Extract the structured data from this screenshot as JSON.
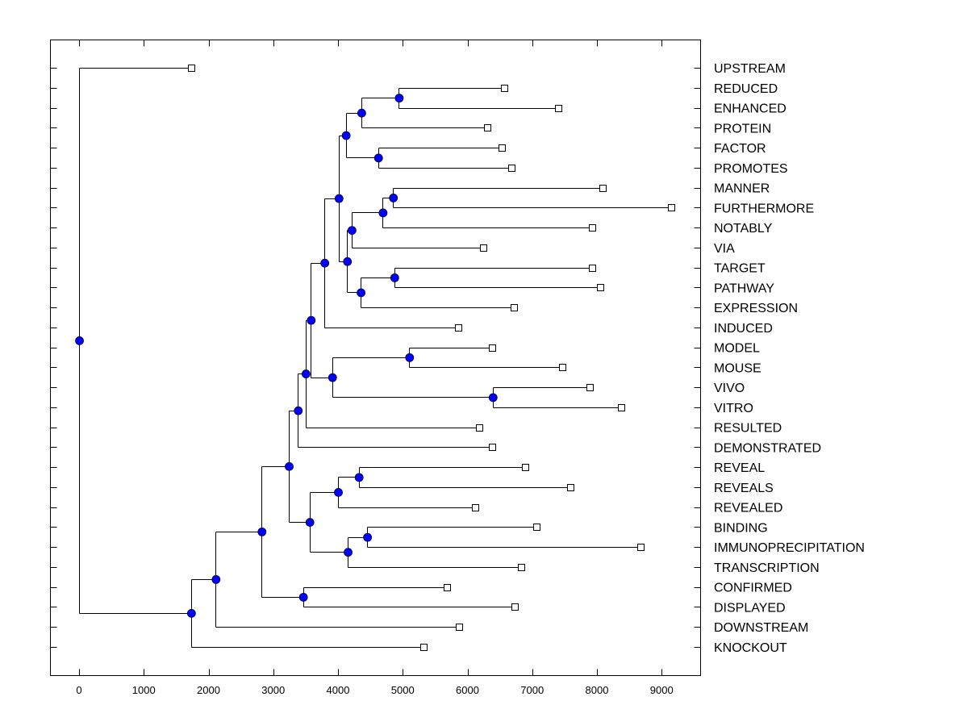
{
  "chart_data": {
    "type": "dendrogram",
    "title": "",
    "xlabel": "",
    "ylabel": "",
    "xlim": [
      -450,
      9600
    ],
    "xticks": [
      0,
      1000,
      2000,
      3000,
      4000,
      5000,
      6000,
      7000,
      8000,
      9000
    ],
    "xtick_labels": [
      "0",
      "1000",
      "2000",
      "3000",
      "4000",
      "5000",
      "6000",
      "7000",
      "8000",
      "9000"
    ],
    "grid": false,
    "leaves_order": [
      "UPSTREAM",
      "REDUCED",
      "ENHANCED",
      "PROTEIN",
      "FACTOR",
      "PROMOTES",
      "MANNER",
      "FURTHERMORE",
      "NOTABLY",
      "VIA",
      "TARGET",
      "PATHWAY",
      "EXPRESSION",
      "INDUCED",
      "MODEL",
      "MOUSE",
      "VIVO",
      "VITRO",
      "RESULTED",
      "DEMONSTRATED",
      "REVEAL",
      "REVEALS",
      "REVEALED",
      "BINDING",
      "IMMUNOPRECIPITATION",
      "TRANSCRIPTION",
      "CONFIRMED",
      "DISPLAYED",
      "DOWNSTREAM",
      "KNOCKOUT"
    ],
    "node_color": "#0000ff",
    "leaf_marker": "open-square",
    "tree": {
      "x": 0,
      "children": [
        {
          "leaf": "UPSTREAM",
          "x": 1730
        },
        {
          "x": 1730,
          "children": [
            {
              "x": 2110,
              "children": [
                {
                  "x": 2820,
                  "children": [
                    {
                      "x": 3240,
                      "children": [
                        {
                          "x": 3380,
                          "children": [
                            {
                              "x": 3500,
                              "children": [
                                {
                                  "x": 3580,
                                  "children": [
                                    {
                                      "x": 3790,
                                      "children": [
                                        {
                                          "x": 4010,
                                          "children": [
                                            {
                                              "x": 4120,
                                              "children": [
                                                {
                                                  "x": 4360,
                                                  "children": [
                                                    {
                                                      "x": 4940,
                                                      "children": [
                                                        {
                                                          "leaf": "REDUCED",
                                                          "x": 6570
                                                        },
                                                        {
                                                          "leaf": "ENHANCED",
                                                          "x": 7400
                                                        }
                                                      ]
                                                    },
                                                    {
                                                      "leaf": "PROTEIN",
                                                      "x": 6300
                                                    }
                                                  ]
                                                },
                                                {
                                                  "x": 4620,
                                                  "children": [
                                                    {
                                                      "leaf": "FACTOR",
                                                      "x": 6530
                                                    },
                                                    {
                                                      "leaf": "PROMOTES",
                                                      "x": 6680
                                                    }
                                                  ]
                                                }
                                              ]
                                            },
                                            {
                                              "x": 4140,
                                              "children": [
                                                {
                                                  "x": 4210,
                                                  "children": [
                                                    {
                                                      "x": 4690,
                                                      "children": [
                                                        {
                                                          "x": 4850,
                                                          "children": [
                                                            {
                                                              "leaf": "MANNER",
                                                              "x": 8090
                                                            },
                                                            {
                                                              "leaf": "FURTHERMORE",
                                                              "x": 9150
                                                            }
                                                          ]
                                                        },
                                                        {
                                                          "leaf": "NOTABLY",
                                                          "x": 7920
                                                        }
                                                      ]
                                                    },
                                                    {
                                                      "leaf": "VIA",
                                                      "x": 6240
                                                    }
                                                  ]
                                                },
                                                {
                                                  "x": 4350,
                                                  "children": [
                                                    {
                                                      "x": 4870,
                                                      "children": [
                                                        {
                                                          "leaf": "TARGET",
                                                          "x": 7920
                                                        },
                                                        {
                                                          "leaf": "PATHWAY",
                                                          "x": 8050
                                                        }
                                                      ]
                                                    },
                                                    {
                                                      "leaf": "EXPRESSION",
                                                      "x": 6720
                                                    }
                                                  ]
                                                }
                                              ]
                                            }
                                          ]
                                        },
                                        {
                                          "leaf": "INDUCED",
                                          "x": 5860
                                        }
                                      ]
                                    },
                                    {
                                      "x": 3910,
                                      "children": [
                                        {
                                          "x": 5100,
                                          "children": [
                                            {
                                              "leaf": "MODEL",
                                              "x": 6380
                                            },
                                            {
                                              "leaf": "MOUSE",
                                              "x": 7460
                                            }
                                          ]
                                        },
                                        {
                                          "x": 6390,
                                          "children": [
                                            {
                                              "leaf": "VIVO",
                                              "x": 7890
                                            },
                                            {
                                              "leaf": "VITRO",
                                              "x": 8370
                                            }
                                          ]
                                        }
                                      ]
                                    }
                                  ]
                                },
                                {
                                  "leaf": "RESULTED",
                                  "x": 6180
                                }
                              ]
                            },
                            {
                              "leaf": "DEMONSTRATED",
                              "x": 6380
                            }
                          ]
                        },
                        {
                          "x": 3560,
                          "children": [
                            {
                              "x": 4000,
                              "children": [
                                {
                                  "x": 4320,
                                  "children": [
                                    {
                                      "leaf": "REVEAL",
                                      "x": 6890
                                    },
                                    {
                                      "leaf": "REVEALS",
                                      "x": 7590
                                    }
                                  ]
                                },
                                {
                                  "leaf": "REVEALED",
                                  "x": 6120
                                }
                              ]
                            },
                            {
                              "x": 4150,
                              "children": [
                                {
                                  "x": 4450,
                                  "children": [
                                    {
                                      "leaf": "BINDING",
                                      "x": 7060
                                    },
                                    {
                                      "leaf": "IMMUNOPRECIPITATION",
                                      "x": 8670
                                    }
                                  ]
                                },
                                {
                                  "leaf": "TRANSCRIPTION",
                                  "x": 6830
                                }
                              ]
                            }
                          ]
                        }
                      ]
                    },
                    {
                      "x": 3460,
                      "children": [
                        {
                          "leaf": "CONFIRMED",
                          "x": 5680
                        },
                        {
                          "leaf": "DISPLAYED",
                          "x": 6730
                        }
                      ]
                    }
                  ]
                },
                {
                  "leaf": "DOWNSTREAM",
                  "x": 5870
                }
              ]
            },
            {
              "leaf": "KNOCKOUT",
              "x": 5320
            }
          ]
        }
      ]
    }
  }
}
